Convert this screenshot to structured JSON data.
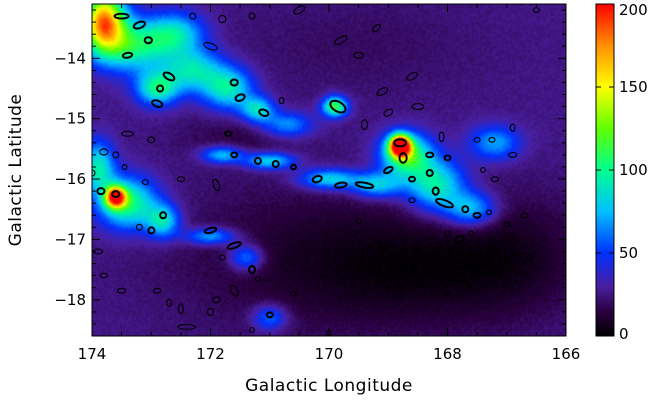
{
  "chart_data": {
    "type": "heatmap",
    "title": "",
    "xlabel": "Galactic Longitude",
    "ylabel": "Galactic Latitude",
    "xlim": [
      174,
      166
    ],
    "ylim": [
      -18.6,
      -13.1
    ],
    "x_ticks": [
      174,
      172,
      170,
      168,
      166
    ],
    "x_tick_labels": [
      "174",
      "172",
      "170",
      "168",
      "166"
    ],
    "y_ticks": [
      -14,
      -15,
      -16,
      -17,
      -18
    ],
    "y_tick_labels": [
      "−14",
      "−15",
      "−16",
      "−17",
      "−18"
    ],
    "colorbar": {
      "range": [
        0,
        200
      ],
      "ticks": [
        0,
        50,
        100,
        150,
        200
      ],
      "tick_labels": [
        "0",
        "50",
        "100",
        "150",
        "200"
      ],
      "colormap": "rainbow"
    },
    "colormap_stops": [
      {
        "v": 0,
        "color": "#000000"
      },
      {
        "v": 15,
        "color": "#2a0040"
      },
      {
        "v": 30,
        "color": "#4a1fa0"
      },
      {
        "v": 50,
        "color": "#0030ff"
      },
      {
        "v": 75,
        "color": "#00c0ff"
      },
      {
        "v": 100,
        "color": "#00ff90"
      },
      {
        "v": 125,
        "color": "#60ff00"
      },
      {
        "v": 150,
        "color": "#ffff00"
      },
      {
        "v": 175,
        "color": "#ff9000"
      },
      {
        "v": 200,
        "color": "#ff0000"
      }
    ],
    "background_level": 26,
    "dark_region_level": 10,
    "emission_regions": [
      {
        "lon": 173.8,
        "lat": -13.4,
        "peak": 150,
        "sx": 0.25,
        "sy": 0.35
      },
      {
        "lon": 173.3,
        "lat": -13.8,
        "peak": 70,
        "sx": 0.4,
        "sy": 0.3
      },
      {
        "lon": 172.6,
        "lat": -13.6,
        "peak": 60,
        "sx": 0.35,
        "sy": 0.25
      },
      {
        "lon": 172.9,
        "lat": -14.5,
        "peak": 70,
        "sx": 0.25,
        "sy": 0.2
      },
      {
        "lon": 172.3,
        "lat": -14.2,
        "peak": 60,
        "sx": 0.35,
        "sy": 0.25
      },
      {
        "lon": 171.7,
        "lat": -14.5,
        "peak": 65,
        "sx": 0.3,
        "sy": 0.25
      },
      {
        "lon": 171.2,
        "lat": -14.85,
        "peak": 60,
        "sx": 0.2,
        "sy": 0.15
      },
      {
        "lon": 170.7,
        "lat": -15.1,
        "peak": 45,
        "sx": 0.3,
        "sy": 0.15
      },
      {
        "lon": 169.9,
        "lat": -14.8,
        "peak": 90,
        "sx": 0.15,
        "sy": 0.12
      },
      {
        "lon": 171.8,
        "lat": -15.6,
        "peak": 55,
        "sx": 0.25,
        "sy": 0.1
      },
      {
        "lon": 171.0,
        "lat": -15.7,
        "peak": 60,
        "sx": 0.3,
        "sy": 0.1
      },
      {
        "lon": 170.0,
        "lat": -16.0,
        "peak": 60,
        "sx": 0.35,
        "sy": 0.12
      },
      {
        "lon": 169.2,
        "lat": -16.1,
        "peak": 55,
        "sx": 0.3,
        "sy": 0.15
      },
      {
        "lon": 168.8,
        "lat": -15.45,
        "peak": 200,
        "sx": 0.12,
        "sy": 0.12
      },
      {
        "lon": 168.7,
        "lat": -15.6,
        "peak": 90,
        "sx": 0.3,
        "sy": 0.25
      },
      {
        "lon": 168.2,
        "lat": -16.1,
        "peak": 70,
        "sx": 0.35,
        "sy": 0.3
      },
      {
        "lon": 167.6,
        "lat": -16.5,
        "peak": 55,
        "sx": 0.3,
        "sy": 0.2
      },
      {
        "lon": 167.2,
        "lat": -15.4,
        "peak": 45,
        "sx": 0.3,
        "sy": 0.2
      },
      {
        "lon": 173.6,
        "lat": -16.3,
        "peak": 150,
        "sx": 0.12,
        "sy": 0.12
      },
      {
        "lon": 173.4,
        "lat": -16.4,
        "peak": 80,
        "sx": 0.35,
        "sy": 0.3
      },
      {
        "lon": 173.9,
        "lat": -15.8,
        "peak": 65,
        "sx": 0.2,
        "sy": 0.3
      },
      {
        "lon": 172.8,
        "lat": -16.7,
        "peak": 60,
        "sx": 0.2,
        "sy": 0.2
      },
      {
        "lon": 172.0,
        "lat": -16.95,
        "peak": 50,
        "sx": 0.3,
        "sy": 0.1
      },
      {
        "lon": 171.4,
        "lat": -17.3,
        "peak": 45,
        "sx": 0.2,
        "sy": 0.15
      },
      {
        "lon": 171.0,
        "lat": -18.3,
        "peak": 40,
        "sx": 0.2,
        "sy": 0.15
      }
    ],
    "dark_regions": [
      {
        "lon": 170.5,
        "lat": -17.3,
        "depth": 14,
        "sx": 1.6,
        "sy": 0.9
      },
      {
        "lon": 168.3,
        "lat": -17.5,
        "depth": 18,
        "sx": 1.4,
        "sy": 0.7
      },
      {
        "lon": 166.8,
        "lat": -17.2,
        "depth": 12,
        "sx": 0.8,
        "sy": 0.7
      },
      {
        "lon": 171.5,
        "lat": -15.3,
        "depth": 10,
        "sx": 0.7,
        "sy": 0.3
      },
      {
        "lon": 169.5,
        "lat": -13.8,
        "depth": 6,
        "sx": 1.5,
        "sy": 0.6
      }
    ],
    "contour_ellipses": [
      {
        "lon": 173.5,
        "lat": -13.3,
        "rx": 0.12,
        "ry": 0.04,
        "angle": 0,
        "style": "source"
      },
      {
        "lon": 173.2,
        "lat": -13.45,
        "rx": 0.1,
        "ry": 0.05,
        "angle": 20,
        "style": "source"
      },
      {
        "lon": 173.05,
        "lat": -13.7,
        "rx": 0.06,
        "ry": 0.05,
        "angle": 0,
        "style": "source"
      },
      {
        "lon": 173.4,
        "lat": -13.95,
        "rx": 0.08,
        "ry": 0.04,
        "angle": 10,
        "style": "source"
      },
      {
        "lon": 172.3,
        "lat": -13.3,
        "rx": 0.05,
        "ry": 0.05,
        "angle": 0,
        "style": "outline"
      },
      {
        "lon": 171.8,
        "lat": -13.35,
        "rx": 0.06,
        "ry": 0.06,
        "angle": 0,
        "style": "outline"
      },
      {
        "lon": 171.3,
        "lat": -13.3,
        "rx": 0.05,
        "ry": 0.05,
        "angle": 0,
        "style": "outline"
      },
      {
        "lon": 170.5,
        "lat": -13.2,
        "rx": 0.1,
        "ry": 0.05,
        "angle": 30,
        "style": "outline"
      },
      {
        "lon": 172.0,
        "lat": -13.8,
        "rx": 0.12,
        "ry": 0.05,
        "angle": -20,
        "style": "outline"
      },
      {
        "lon": 169.8,
        "lat": -13.7,
        "rx": 0.12,
        "ry": 0.05,
        "angle": 30,
        "style": "outline"
      },
      {
        "lon": 169.2,
        "lat": -13.5,
        "rx": 0.08,
        "ry": 0.04,
        "angle": 40,
        "style": "outline"
      },
      {
        "lon": 169.5,
        "lat": -13.95,
        "rx": 0.08,
        "ry": 0.05,
        "angle": 0,
        "style": "outline"
      },
      {
        "lon": 172.7,
        "lat": -14.3,
        "rx": 0.1,
        "ry": 0.05,
        "angle": -30,
        "style": "source"
      },
      {
        "lon": 172.85,
        "lat": -14.5,
        "rx": 0.05,
        "ry": 0.05,
        "angle": 0,
        "style": "source"
      },
      {
        "lon": 172.9,
        "lat": -14.75,
        "rx": 0.09,
        "ry": 0.05,
        "angle": -20,
        "style": "source"
      },
      {
        "lon": 171.6,
        "lat": -14.4,
        "rx": 0.06,
        "ry": 0.05,
        "angle": 0,
        "style": "source"
      },
      {
        "lon": 171.5,
        "lat": -14.65,
        "rx": 0.08,
        "ry": 0.05,
        "angle": 20,
        "style": "source"
      },
      {
        "lon": 171.1,
        "lat": -14.9,
        "rx": 0.08,
        "ry": 0.05,
        "angle": -20,
        "style": "source"
      },
      {
        "lon": 170.8,
        "lat": -14.7,
        "rx": 0.04,
        "ry": 0.05,
        "angle": 0,
        "style": "outline"
      },
      {
        "lon": 169.85,
        "lat": -14.8,
        "rx": 0.14,
        "ry": 0.08,
        "angle": -30,
        "style": "source"
      },
      {
        "lon": 168.6,
        "lat": -14.3,
        "rx": 0.1,
        "ry": 0.05,
        "angle": 30,
        "style": "outline"
      },
      {
        "lon": 169.1,
        "lat": -14.55,
        "rx": 0.1,
        "ry": 0.05,
        "angle": 30,
        "style": "outline"
      },
      {
        "lon": 168.5,
        "lat": -14.8,
        "rx": 0.1,
        "ry": 0.05,
        "angle": 0,
        "style": "outline"
      },
      {
        "lon": 169.0,
        "lat": -14.9,
        "rx": 0.08,
        "ry": 0.05,
        "angle": 30,
        "style": "outline"
      },
      {
        "lon": 169.4,
        "lat": -15.1,
        "rx": 0.05,
        "ry": 0.08,
        "angle": 0,
        "style": "outline"
      },
      {
        "lon": 171.7,
        "lat": -15.25,
        "rx": 0.05,
        "ry": 0.04,
        "angle": 0,
        "style": "source"
      },
      {
        "lon": 173.4,
        "lat": -15.25,
        "rx": 0.1,
        "ry": 0.04,
        "angle": 0,
        "style": "outline"
      },
      {
        "lon": 173.0,
        "lat": -15.35,
        "rx": 0.06,
        "ry": 0.05,
        "angle": 0,
        "style": "outline"
      },
      {
        "lon": 173.8,
        "lat": -15.55,
        "rx": 0.07,
        "ry": 0.05,
        "angle": 0,
        "style": "outline"
      },
      {
        "lon": 173.6,
        "lat": -15.6,
        "rx": 0.05,
        "ry": 0.05,
        "angle": 0,
        "style": "outline"
      },
      {
        "lon": 173.45,
        "lat": -15.8,
        "rx": 0.04,
        "ry": 0.04,
        "angle": 0,
        "style": "outline"
      },
      {
        "lon": 174.0,
        "lat": -15.9,
        "rx": 0.05,
        "ry": 0.05,
        "angle": 0,
        "style": "outline"
      },
      {
        "lon": 173.6,
        "lat": -16.25,
        "rx": 0.06,
        "ry": 0.05,
        "angle": 0,
        "style": "source"
      },
      {
        "lon": 173.85,
        "lat": -16.2,
        "rx": 0.06,
        "ry": 0.05,
        "angle": 0,
        "style": "source"
      },
      {
        "lon": 173.1,
        "lat": -16.05,
        "rx": 0.05,
        "ry": 0.04,
        "angle": 0,
        "style": "outline"
      },
      {
        "lon": 172.5,
        "lat": -16.0,
        "rx": 0.06,
        "ry": 0.04,
        "angle": 0,
        "style": "outline"
      },
      {
        "lon": 171.9,
        "lat": -16.1,
        "rx": 0.05,
        "ry": 0.1,
        "angle": 20,
        "style": "outline"
      },
      {
        "lon": 172.8,
        "lat": -16.6,
        "rx": 0.05,
        "ry": 0.05,
        "angle": 0,
        "style": "source"
      },
      {
        "lon": 173.0,
        "lat": -16.85,
        "rx": 0.05,
        "ry": 0.05,
        "angle": 0,
        "style": "source"
      },
      {
        "lon": 173.2,
        "lat": -16.8,
        "rx": 0.05,
        "ry": 0.05,
        "angle": 0,
        "style": "outline"
      },
      {
        "lon": 173.9,
        "lat": -17.2,
        "rx": 0.08,
        "ry": 0.04,
        "angle": 0,
        "style": "outline"
      },
      {
        "lon": 172.0,
        "lat": -16.85,
        "rx": 0.1,
        "ry": 0.04,
        "angle": 15,
        "style": "source"
      },
      {
        "lon": 171.6,
        "lat": -17.1,
        "rx": 0.12,
        "ry": 0.04,
        "angle": 20,
        "style": "source"
      },
      {
        "lon": 171.3,
        "lat": -17.5,
        "rx": 0.05,
        "ry": 0.06,
        "angle": 0,
        "style": "source"
      },
      {
        "lon": 171.8,
        "lat": -17.3,
        "rx": 0.05,
        "ry": 0.04,
        "angle": 0,
        "style": "outline"
      },
      {
        "lon": 171.2,
        "lat": -17.65,
        "rx": 0.04,
        "ry": 0.04,
        "angle": 0,
        "style": "outline"
      },
      {
        "lon": 171.6,
        "lat": -17.85,
        "rx": 0.05,
        "ry": 0.1,
        "angle": 30,
        "style": "outline"
      },
      {
        "lon": 173.8,
        "lat": -17.6,
        "rx": 0.06,
        "ry": 0.04,
        "angle": 0,
        "style": "outline"
      },
      {
        "lon": 173.5,
        "lat": -17.85,
        "rx": 0.07,
        "ry": 0.04,
        "angle": 0,
        "style": "outline"
      },
      {
        "lon": 172.9,
        "lat": -17.85,
        "rx": 0.06,
        "ry": 0.04,
        "angle": 0,
        "style": "outline"
      },
      {
        "lon": 171.9,
        "lat": -18.0,
        "rx": 0.06,
        "ry": 0.05,
        "angle": 0,
        "style": "outline"
      },
      {
        "lon": 172.5,
        "lat": -18.15,
        "rx": 0.04,
        "ry": 0.08,
        "angle": 0,
        "style": "outline"
      },
      {
        "lon": 172.7,
        "lat": -18.05,
        "rx": 0.04,
        "ry": 0.06,
        "angle": 0,
        "style": "outline"
      },
      {
        "lon": 172.0,
        "lat": -18.2,
        "rx": 0.05,
        "ry": 0.06,
        "angle": 0,
        "style": "outline"
      },
      {
        "lon": 172.4,
        "lat": -18.45,
        "rx": 0.15,
        "ry": 0.04,
        "angle": 0,
        "style": "outline"
      },
      {
        "lon": 171.0,
        "lat": -18.25,
        "rx": 0.05,
        "ry": 0.04,
        "angle": 0,
        "style": "source"
      },
      {
        "lon": 171.3,
        "lat": -18.5,
        "rx": 0.04,
        "ry": 0.04,
        "angle": 0,
        "style": "outline"
      },
      {
        "lon": 170.6,
        "lat": -17.9,
        "rx": 0.04,
        "ry": 0.04,
        "angle": 0,
        "style": "outline"
      },
      {
        "lon": 171.6,
        "lat": -15.6,
        "rx": 0.05,
        "ry": 0.04,
        "angle": 0,
        "style": "source"
      },
      {
        "lon": 171.2,
        "lat": -15.7,
        "rx": 0.05,
        "ry": 0.05,
        "angle": 0,
        "style": "source"
      },
      {
        "lon": 170.9,
        "lat": -15.75,
        "rx": 0.05,
        "ry": 0.05,
        "angle": 0,
        "style": "source"
      },
      {
        "lon": 170.6,
        "lat": -15.8,
        "rx": 0.04,
        "ry": 0.04,
        "angle": 0,
        "style": "source"
      },
      {
        "lon": 170.2,
        "lat": -16.0,
        "rx": 0.08,
        "ry": 0.05,
        "angle": 20,
        "style": "source"
      },
      {
        "lon": 169.8,
        "lat": -16.1,
        "rx": 0.1,
        "ry": 0.04,
        "angle": 10,
        "style": "source"
      },
      {
        "lon": 169.4,
        "lat": -16.1,
        "rx": 0.15,
        "ry": 0.04,
        "angle": -10,
        "style": "source"
      },
      {
        "lon": 169.0,
        "lat": -15.85,
        "rx": 0.08,
        "ry": 0.04,
        "angle": 30,
        "style": "source"
      },
      {
        "lon": 168.75,
        "lat": -15.65,
        "rx": 0.06,
        "ry": 0.08,
        "angle": 0,
        "style": "source"
      },
      {
        "lon": 168.8,
        "lat": -15.4,
        "rx": 0.1,
        "ry": 0.06,
        "angle": 0,
        "style": "source"
      },
      {
        "lon": 168.3,
        "lat": -15.6,
        "rx": 0.06,
        "ry": 0.04,
        "angle": 0,
        "style": "source"
      },
      {
        "lon": 168.0,
        "lat": -15.65,
        "rx": 0.05,
        "ry": 0.04,
        "angle": 0,
        "style": "source"
      },
      {
        "lon": 168.3,
        "lat": -15.9,
        "rx": 0.05,
        "ry": 0.05,
        "angle": 0,
        "style": "source"
      },
      {
        "lon": 168.6,
        "lat": -16.0,
        "rx": 0.05,
        "ry": 0.04,
        "angle": 0,
        "style": "source"
      },
      {
        "lon": 168.2,
        "lat": -16.2,
        "rx": 0.05,
        "ry": 0.06,
        "angle": 0,
        "style": "source"
      },
      {
        "lon": 168.05,
        "lat": -16.4,
        "rx": 0.15,
        "ry": 0.05,
        "angle": -20,
        "style": "source"
      },
      {
        "lon": 168.6,
        "lat": -16.35,
        "rx": 0.05,
        "ry": 0.04,
        "angle": 0,
        "style": "outline"
      },
      {
        "lon": 167.7,
        "lat": -16.5,
        "rx": 0.05,
        "ry": 0.05,
        "angle": 0,
        "style": "source"
      },
      {
        "lon": 167.5,
        "lat": -16.6,
        "rx": 0.06,
        "ry": 0.04,
        "angle": 0,
        "style": "source"
      },
      {
        "lon": 167.3,
        "lat": -16.55,
        "rx": 0.04,
        "ry": 0.04,
        "angle": 0,
        "style": "outline"
      },
      {
        "lon": 167.8,
        "lat": -17.0,
        "rx": 0.08,
        "ry": 0.05,
        "angle": 30,
        "style": "source"
      },
      {
        "lon": 167.6,
        "lat": -16.9,
        "rx": 0.04,
        "ry": 0.04,
        "angle": 0,
        "style": "outline"
      },
      {
        "lon": 167.0,
        "lat": -16.75,
        "rx": 0.05,
        "ry": 0.04,
        "angle": 0,
        "style": "outline"
      },
      {
        "lon": 166.7,
        "lat": -16.6,
        "rx": 0.06,
        "ry": 0.04,
        "angle": 0,
        "style": "outline"
      },
      {
        "lon": 167.5,
        "lat": -15.35,
        "rx": 0.05,
        "ry": 0.04,
        "angle": 0,
        "style": "outline"
      },
      {
        "lon": 167.25,
        "lat": -15.35,
        "rx": 0.05,
        "ry": 0.04,
        "angle": 0,
        "style": "outline"
      },
      {
        "lon": 166.9,
        "lat": -15.15,
        "rx": 0.04,
        "ry": 0.06,
        "angle": 0,
        "style": "outline"
      },
      {
        "lon": 166.9,
        "lat": -15.6,
        "rx": 0.07,
        "ry": 0.04,
        "angle": 0,
        "style": "outline"
      },
      {
        "lon": 167.4,
        "lat": -15.85,
        "rx": 0.04,
        "ry": 0.04,
        "angle": 0,
        "style": "outline"
      },
      {
        "lon": 167.2,
        "lat": -16.0,
        "rx": 0.06,
        "ry": 0.04,
        "angle": 0,
        "style": "outline"
      },
      {
        "lon": 168.1,
        "lat": -15.3,
        "rx": 0.04,
        "ry": 0.08,
        "angle": 0,
        "style": "outline"
      },
      {
        "lon": 166.6,
        "lat": -17.3,
        "rx": 0.05,
        "ry": 0.04,
        "angle": 0,
        "style": "outline"
      },
      {
        "lon": 166.5,
        "lat": -13.2,
        "rx": 0.05,
        "ry": 0.04,
        "angle": 0,
        "style": "outline"
      },
      {
        "lon": 168.0,
        "lat": -16.9,
        "rx": 0.04,
        "ry": 0.04,
        "angle": 0,
        "style": "outline"
      },
      {
        "lon": 169.1,
        "lat": -17.1,
        "rx": 0.06,
        "ry": 0.05,
        "angle": 0,
        "style": "outline"
      },
      {
        "lon": 169.5,
        "lat": -16.7,
        "rx": 0.04,
        "ry": 0.04,
        "angle": 0,
        "style": "outline"
      },
      {
        "lon": 168.5,
        "lat": -17.6,
        "rx": 0.04,
        "ry": 0.04,
        "angle": 0,
        "style": "outline"
      },
      {
        "lon": 168.0,
        "lat": -17.9,
        "rx": 0.04,
        "ry": 0.04,
        "angle": 0,
        "style": "outline"
      },
      {
        "lon": 170.0,
        "lat": -18.55,
        "rx": 0.04,
        "ry": 0.04,
        "angle": 0,
        "style": "outline"
      }
    ]
  }
}
